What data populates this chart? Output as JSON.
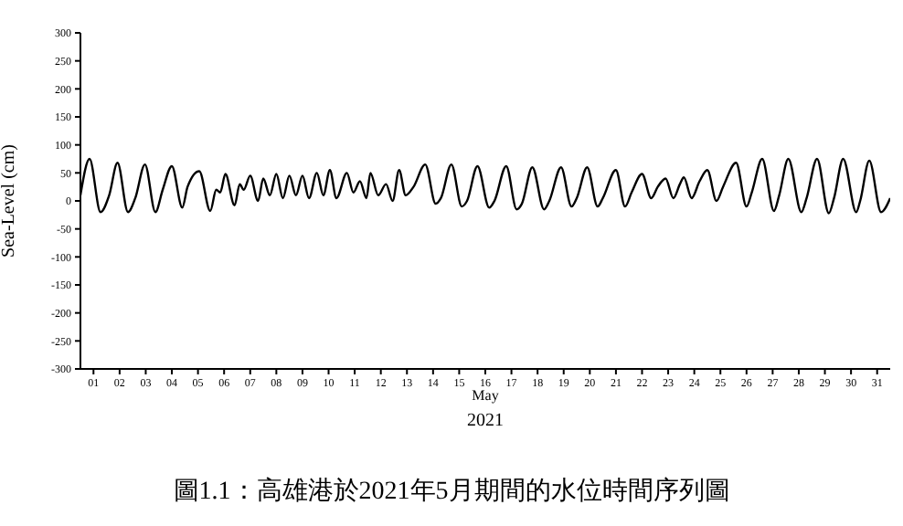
{
  "chart_data": {
    "type": "line",
    "title": "圖1.1：高雄港於2021年5月期間的水位時間序列圖",
    "xlabel": "May",
    "ylabel": "Sea-Level (cm)",
    "annotations": [
      "2021"
    ],
    "xlim": [
      1,
      32
    ],
    "xticks": [
      {
        "value": 1.5,
        "label": "01"
      },
      {
        "value": 2.5,
        "label": "02"
      },
      {
        "value": 3.5,
        "label": "03"
      },
      {
        "value": 4.5,
        "label": "04"
      },
      {
        "value": 5.5,
        "label": "05"
      },
      {
        "value": 6.5,
        "label": "06"
      },
      {
        "value": 7.5,
        "label": "07"
      },
      {
        "value": 8.5,
        "label": "08"
      },
      {
        "value": 9.5,
        "label": "09"
      },
      {
        "value": 10.5,
        "label": "10"
      },
      {
        "value": 11.5,
        "label": "11"
      },
      {
        "value": 12.5,
        "label": "12"
      },
      {
        "value": 13.5,
        "label": "13"
      },
      {
        "value": 14.5,
        "label": "14"
      },
      {
        "value": 15.5,
        "label": "15"
      },
      {
        "value": 16.5,
        "label": "16"
      },
      {
        "value": 17.5,
        "label": "17"
      },
      {
        "value": 18.5,
        "label": "18"
      },
      {
        "value": 19.5,
        "label": "19"
      },
      {
        "value": 20.5,
        "label": "20"
      },
      {
        "value": 21.5,
        "label": "21"
      },
      {
        "value": 22.5,
        "label": "22"
      },
      {
        "value": 23.5,
        "label": "23"
      },
      {
        "value": 24.5,
        "label": "24"
      },
      {
        "value": 25.5,
        "label": "25"
      },
      {
        "value": 26.5,
        "label": "26"
      },
      {
        "value": 27.5,
        "label": "27"
      },
      {
        "value": 28.5,
        "label": "28"
      },
      {
        "value": 29.5,
        "label": "29"
      },
      {
        "value": 30.5,
        "label": "30"
      },
      {
        "value": 31.5,
        "label": "31"
      }
    ],
    "ylim": [
      -300,
      300
    ],
    "yticks": [
      -300,
      -250,
      -200,
      -150,
      -100,
      -50,
      0,
      50,
      100,
      150,
      200,
      250,
      300
    ],
    "series": [
      {
        "color": "#000000",
        "x": [
          1.0,
          1.35,
          1.77,
          2.1,
          2.42,
          2.82,
          3.1,
          3.47,
          3.87,
          4.15,
          4.5,
          4.9,
          5.1,
          5.55,
          5.97,
          6.2,
          6.35,
          6.55,
          6.9,
          7.1,
          7.25,
          7.5,
          7.8,
          8.0,
          8.25,
          8.5,
          8.75,
          9.0,
          9.25,
          9.5,
          9.75,
          10.05,
          10.3,
          10.55,
          10.8,
          11.2,
          11.45,
          11.7,
          11.95,
          12.1,
          12.4,
          12.7,
          12.95,
          13.2,
          13.45,
          13.75,
          14.2,
          14.6,
          14.8,
          15.2,
          15.6,
          15.8,
          16.2,
          16.65,
          16.85,
          17.3,
          17.7,
          17.9,
          18.3,
          18.75,
          18.95,
          19.4,
          19.8,
          20.0,
          20.4,
          20.8,
          21.0,
          21.5,
          21.85,
          22.1,
          22.5,
          22.85,
          23.1,
          23.4,
          23.7,
          23.95,
          24.1,
          24.4,
          24.7,
          25.0,
          25.35,
          25.6,
          26.1,
          26.5,
          26.7,
          27.1,
          27.55,
          27.75,
          28.1,
          28.6,
          28.8,
          29.2,
          29.65,
          29.85,
          30.2,
          30.7,
          30.85,
          31.2,
          31.65,
          32.0
        ],
        "values": [
          10,
          75,
          -20,
          10,
          68,
          -20,
          5,
          65,
          -20,
          20,
          62,
          -12,
          25,
          53,
          -18,
          20,
          15,
          48,
          -8,
          30,
          20,
          45,
          0,
          40,
          10,
          48,
          5,
          45,
          10,
          45,
          5,
          50,
          10,
          55,
          5,
          50,
          15,
          35,
          5,
          50,
          10,
          30,
          0,
          55,
          10,
          25,
          65,
          -5,
          5,
          65,
          -10,
          0,
          62,
          -12,
          0,
          62,
          -15,
          -5,
          60,
          -15,
          0,
          60,
          -10,
          5,
          60,
          -10,
          5,
          55,
          -10,
          15,
          48,
          5,
          25,
          40,
          5,
          30,
          42,
          5,
          35,
          55,
          0,
          25,
          68,
          -10,
          15,
          75,
          -18,
          10,
          75,
          -20,
          5,
          75,
          -22,
          5,
          75,
          -20,
          0,
          72,
          -20,
          5
        ]
      }
    ]
  }
}
